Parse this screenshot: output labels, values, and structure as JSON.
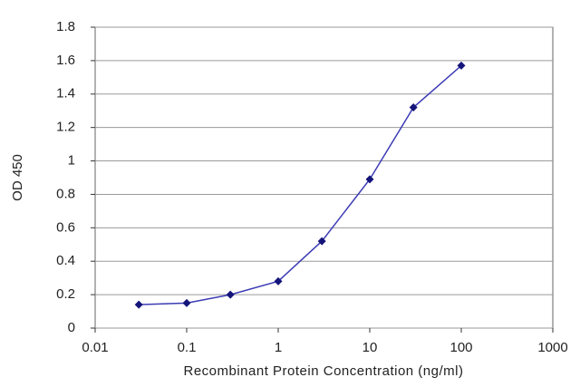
{
  "chart_data": {
    "type": "line",
    "x_label": "Recombinant Protein Concentration (ng/ml)",
    "y_label": "OD 450",
    "x": [
      0.03,
      0.1,
      0.3,
      1,
      3,
      10,
      30,
      100
    ],
    "series": [
      {
        "color": "#3c3cb4",
        "marker_color": "#14147a",
        "values": [
          0.14,
          0.15,
          0.2,
          0.28,
          0.52,
          0.89,
          1.32,
          1.57
        ]
      }
    ],
    "xlog": true,
    "xlim": [
      0.01,
      1000
    ],
    "xticks": [
      0.01,
      0.1,
      1,
      10,
      100,
      1000
    ],
    "ylim": [
      0,
      1.8
    ],
    "yticks": [
      0,
      0.2,
      0.4,
      0.6,
      0.8,
      1,
      1.2,
      1.4,
      1.6,
      1.8
    ],
    "grid": true
  }
}
